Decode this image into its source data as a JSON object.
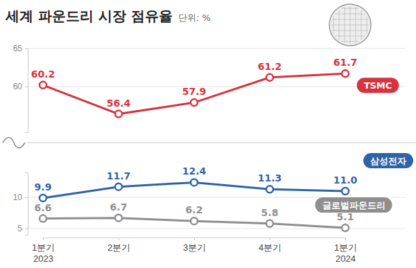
{
  "chart_data": [
    {
      "type": "line",
      "title": "세계 파운드리 시장 점유율",
      "subtitle": "단위: %",
      "categories": [
        "1분기\n2023",
        "2분기",
        "3분기",
        "4분기",
        "1분기\n2024"
      ],
      "series": [
        {
          "name": "TSMC",
          "color": "#d7333e",
          "values": [
            60.2,
            56.4,
            57.9,
            61.2,
            61.7
          ]
        }
      ],
      "ylim": [
        54,
        65
      ],
      "yticks": [
        60,
        65
      ],
      "grid": true,
      "data_labels": true,
      "tick_labels": "y",
      "marker": "circle"
    },
    {
      "type": "line",
      "categories": [
        "1분기\n2023",
        "2분기",
        "3분기",
        "4분기",
        "1분기\n2024"
      ],
      "series": [
        {
          "name": "삼성전자",
          "color": "#2f63a8",
          "values": [
            9.9,
            11.7,
            12.4,
            11.3,
            11.0
          ],
          "value_labels": [
            "9.9",
            "11.7",
            "12.4",
            "11.3",
            "11.0"
          ]
        },
        {
          "name": "글로벌파운드리",
          "color": "#8e8e8e",
          "values": [
            6.6,
            6.7,
            6.2,
            5.8,
            5.1
          ]
        }
      ],
      "ylim": [
        4,
        14
      ],
      "yticks": [
        5,
        10
      ],
      "grid": true,
      "data_labels": true,
      "marker": "circle"
    }
  ]
}
